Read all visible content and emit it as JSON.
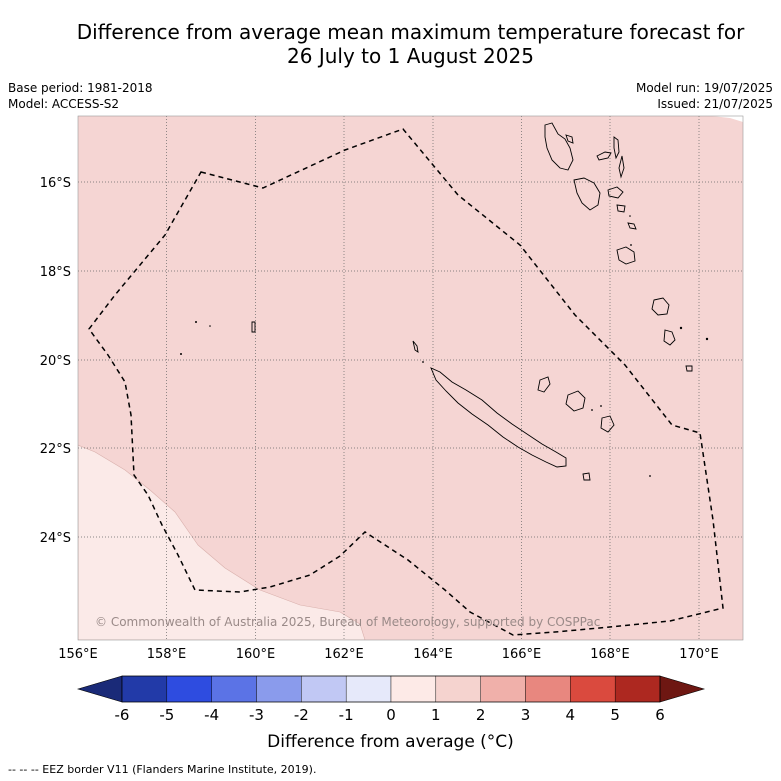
{
  "title": {
    "line1": "Difference from average mean maximum temperature forecast for",
    "line2": "26 July to 1 August 2025"
  },
  "meta_left": {
    "base_period": "Base period: 1981-2018",
    "model": "Model: ACCESS-S2"
  },
  "meta_right": {
    "model_run": "Model run: 19/07/2025",
    "issued": "Issued: 21/07/2025"
  },
  "map": {
    "lat_labels": [
      "16°S",
      "18°S",
      "20°S",
      "22°S",
      "24°S"
    ],
    "lon_labels": [
      "156°E",
      "158°E",
      "160°E",
      "162°E",
      "164°E",
      "166°E",
      "168°E",
      "170°E"
    ],
    "copyright": "© Commonwealth of Australia 2025, Bureau of Meteorology, supported by COSPPac",
    "fill_colors": {
      "one_to_two": "#f5d5d3",
      "zero_to_one": "#fbeae8"
    }
  },
  "colorbar": {
    "ticks": [
      "-6",
      "-5",
      "-4",
      "-3",
      "-2",
      "-1",
      "0",
      "1",
      "2",
      "3",
      "4",
      "5",
      "6"
    ],
    "colors": [
      "#223aa8",
      "#2e4ce0",
      "#5b73e6",
      "#8a9bec",
      "#c1c8f4",
      "#e6e9fa",
      "#fdeae7",
      "#f5d3cf",
      "#f0b0aa",
      "#e8877f",
      "#da4a3e",
      "#ad2820"
    ],
    "low_extend": "#1a2a78",
    "high_extend": "#6e1712",
    "label": "Difference from average (°C)"
  },
  "footer": "-- -- -- EEZ border V11 (Flanders Marine Institute, 2019)."
}
